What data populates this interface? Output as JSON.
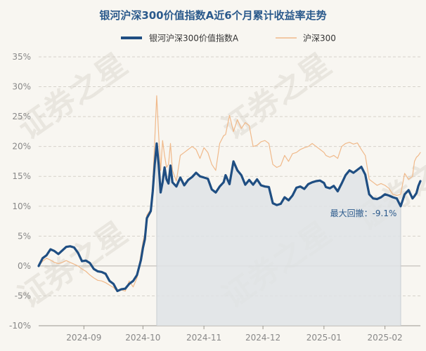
{
  "colors": {
    "fund": "#1f4e82",
    "index": "#f0b98a",
    "grid": "#d6d2ca",
    "drawdown_fill": "#dfe3e6",
    "drawdown_line": "#c9ced3",
    "text": "#2b5a8c"
  },
  "chart_data": {
    "type": "line",
    "title": "银河沪深300价值指数A近6个月累计收益率走势",
    "xlabel": "",
    "ylabel": "",
    "ylim": [
      -10,
      35
    ],
    "yticks": [
      -10,
      -5,
      0,
      5,
      10,
      15,
      20,
      25,
      30,
      35
    ],
    "ytick_labels": [
      "-10%",
      "-5%",
      "0%",
      "5%",
      "10%",
      "15%",
      "20%",
      "25%",
      "30%",
      "35%"
    ],
    "x_range": [
      "2024-08-09",
      "2025-02-19"
    ],
    "xticks": [
      "2024-09-01",
      "2024-10-01",
      "2024-11-01",
      "2024-12-01",
      "2025-01-01",
      "2025-02-01"
    ],
    "xtick_labels": [
      "2024-09",
      "2024-10",
      "2024-11",
      "2024-12",
      "2025-01",
      "2025-02"
    ],
    "legend_position": "top",
    "grid": "horizontal dashed",
    "series": [
      {
        "name": "银河沪深300价值指数A",
        "style": "thick",
        "points": [
          [
            "2024-08-09",
            0.0
          ],
          [
            "2024-08-11",
            1.3
          ],
          [
            "2024-08-13",
            1.8
          ],
          [
            "2024-08-15",
            2.8
          ],
          [
            "2024-08-17",
            2.5
          ],
          [
            "2024-08-19",
            2.0
          ],
          [
            "2024-08-21",
            2.6
          ],
          [
            "2024-08-23",
            3.2
          ],
          [
            "2024-08-25",
            3.3
          ],
          [
            "2024-08-27",
            3.1
          ],
          [
            "2024-08-29",
            2.2
          ],
          [
            "2024-08-31",
            0.8
          ],
          [
            "2024-09-02",
            0.9
          ],
          [
            "2024-09-04",
            0.5
          ],
          [
            "2024-09-06",
            -0.5
          ],
          [
            "2024-09-08",
            -0.9
          ],
          [
            "2024-09-10",
            -1.0
          ],
          [
            "2024-09-12",
            -1.3
          ],
          [
            "2024-09-14",
            -2.5
          ],
          [
            "2024-09-16",
            -3.0
          ],
          [
            "2024-09-18",
            -4.2
          ],
          [
            "2024-09-20",
            -3.9
          ],
          [
            "2024-09-22",
            -3.8
          ],
          [
            "2024-09-24",
            -3.0
          ],
          [
            "2024-09-26",
            -2.5
          ],
          [
            "2024-09-28",
            -1.5
          ],
          [
            "2024-09-30",
            1.0
          ],
          [
            "2024-10-01",
            3.0
          ],
          [
            "2024-10-02",
            4.5
          ],
          [
            "2024-10-03",
            8.0
          ],
          [
            "2024-10-05",
            9.2
          ],
          [
            "2024-10-06",
            12.5
          ],
          [
            "2024-10-07",
            17.0
          ],
          [
            "2024-10-08",
            20.5
          ],
          [
            "2024-10-09",
            17.0
          ],
          [
            "2024-10-10",
            12.3
          ],
          [
            "2024-10-11",
            14.0
          ],
          [
            "2024-10-12",
            16.5
          ],
          [
            "2024-10-13",
            14.5
          ],
          [
            "2024-10-14",
            13.8
          ],
          [
            "2024-10-15",
            16.8
          ],
          [
            "2024-10-16",
            14.0
          ],
          [
            "2024-10-18",
            13.3
          ],
          [
            "2024-10-20",
            14.8
          ],
          [
            "2024-10-22",
            13.5
          ],
          [
            "2024-10-24",
            14.4
          ],
          [
            "2024-10-26",
            14.9
          ],
          [
            "2024-10-28",
            15.6
          ],
          [
            "2024-10-30",
            15.0
          ],
          [
            "2024-11-01",
            14.8
          ],
          [
            "2024-11-03",
            14.6
          ],
          [
            "2024-11-05",
            12.8
          ],
          [
            "2024-11-07",
            12.3
          ],
          [
            "2024-11-09",
            13.3
          ],
          [
            "2024-11-11",
            14.0
          ],
          [
            "2024-11-12",
            15.2
          ],
          [
            "2024-11-14",
            13.7
          ],
          [
            "2024-11-16",
            17.5
          ],
          [
            "2024-11-18",
            16.0
          ],
          [
            "2024-11-20",
            15.2
          ],
          [
            "2024-11-22",
            13.6
          ],
          [
            "2024-11-24",
            14.4
          ],
          [
            "2024-11-26",
            13.6
          ],
          [
            "2024-11-28",
            14.5
          ],
          [
            "2024-11-30",
            13.5
          ],
          [
            "2024-12-02",
            13.3
          ],
          [
            "2024-12-04",
            13.2
          ],
          [
            "2024-12-06",
            10.5
          ],
          [
            "2024-12-08",
            10.2
          ],
          [
            "2024-12-10",
            10.4
          ],
          [
            "2024-12-12",
            11.5
          ],
          [
            "2024-12-14",
            11.0
          ],
          [
            "2024-12-16",
            11.8
          ],
          [
            "2024-12-18",
            13.1
          ],
          [
            "2024-12-20",
            13.3
          ],
          [
            "2024-12-22",
            12.9
          ],
          [
            "2024-12-24",
            13.7
          ],
          [
            "2024-12-26",
            14.0
          ],
          [
            "2024-12-28",
            14.2
          ],
          [
            "2024-12-30",
            14.3
          ],
          [
            "2025-01-01",
            13.9
          ],
          [
            "2025-01-02",
            13.2
          ],
          [
            "2025-01-04",
            13.0
          ],
          [
            "2025-01-06",
            13.4
          ],
          [
            "2025-01-08",
            12.5
          ],
          [
            "2025-01-10",
            13.8
          ],
          [
            "2025-01-12",
            15.2
          ],
          [
            "2025-01-14",
            16.0
          ],
          [
            "2025-01-16",
            15.6
          ],
          [
            "2025-01-18",
            16.1
          ],
          [
            "2025-01-20",
            16.6
          ],
          [
            "2025-01-22",
            15.3
          ],
          [
            "2025-01-24",
            12.0
          ],
          [
            "2025-01-26",
            11.3
          ],
          [
            "2025-01-28",
            11.2
          ],
          [
            "2025-01-30",
            11.5
          ],
          [
            "2025-02-01",
            12.0
          ],
          [
            "2025-02-03",
            11.8
          ],
          [
            "2025-02-05",
            11.5
          ],
          [
            "2025-02-07",
            11.3
          ],
          [
            "2025-02-09",
            10.0
          ],
          [
            "2025-02-11",
            12.0
          ],
          [
            "2025-02-13",
            12.7
          ],
          [
            "2025-02-15",
            11.3
          ],
          [
            "2025-02-16",
            11.7
          ],
          [
            "2025-02-17",
            12.2
          ],
          [
            "2025-02-18",
            13.4
          ],
          [
            "2025-02-19",
            14.2
          ]
        ]
      },
      {
        "name": "沪深300",
        "style": "thin",
        "points": [
          [
            "2024-08-09",
            0.0
          ],
          [
            "2024-08-11",
            0.8
          ],
          [
            "2024-08-13",
            1.3
          ],
          [
            "2024-08-15",
            1.0
          ],
          [
            "2024-08-17",
            0.6
          ],
          [
            "2024-08-19",
            0.4
          ],
          [
            "2024-08-21",
            0.6
          ],
          [
            "2024-08-23",
            0.9
          ],
          [
            "2024-08-25",
            0.6
          ],
          [
            "2024-08-27",
            0.3
          ],
          [
            "2024-08-29",
            0.0
          ],
          [
            "2024-08-31",
            -0.5
          ],
          [
            "2024-09-02",
            -0.9
          ],
          [
            "2024-09-04",
            -1.5
          ],
          [
            "2024-09-06",
            -2.0
          ],
          [
            "2024-09-08",
            -2.4
          ],
          [
            "2024-09-10",
            -2.5
          ],
          [
            "2024-09-12",
            -2.8
          ],
          [
            "2024-09-14",
            -3.2
          ],
          [
            "2024-09-16",
            -3.6
          ],
          [
            "2024-09-18",
            -4.3
          ],
          [
            "2024-09-20",
            -4.0
          ],
          [
            "2024-09-22",
            -4.2
          ],
          [
            "2024-09-24",
            -2.5
          ],
          [
            "2024-09-26",
            -3.5
          ],
          [
            "2024-09-28",
            -2.0
          ],
          [
            "2024-09-30",
            2.0
          ],
          [
            "2024-10-01",
            4.0
          ],
          [
            "2024-10-02",
            5.5
          ],
          [
            "2024-10-03",
            8.5
          ],
          [
            "2024-10-05",
            9.5
          ],
          [
            "2024-10-06",
            14.0
          ],
          [
            "2024-10-07",
            21.0
          ],
          [
            "2024-10-08",
            28.5
          ],
          [
            "2024-10-09",
            22.0
          ],
          [
            "2024-10-10",
            16.0
          ],
          [
            "2024-10-11",
            21.0
          ],
          [
            "2024-10-12",
            18.5
          ],
          [
            "2024-10-13",
            16.5
          ],
          [
            "2024-10-14",
            17.0
          ],
          [
            "2024-10-15",
            20.5
          ],
          [
            "2024-10-16",
            16.0
          ],
          [
            "2024-10-18",
            14.2
          ],
          [
            "2024-10-20",
            18.5
          ],
          [
            "2024-10-22",
            19.0
          ],
          [
            "2024-10-24",
            19.5
          ],
          [
            "2024-10-26",
            20.0
          ],
          [
            "2024-10-28",
            19.5
          ],
          [
            "2024-10-30",
            18.0
          ],
          [
            "2024-11-01",
            19.8
          ],
          [
            "2024-11-03",
            19.0
          ],
          [
            "2024-11-05",
            17.0
          ],
          [
            "2024-11-07",
            16.0
          ],
          [
            "2024-11-09",
            20.5
          ],
          [
            "2024-11-11",
            21.8
          ],
          [
            "2024-11-12",
            22.0
          ],
          [
            "2024-11-14",
            25.2
          ],
          [
            "2024-11-16",
            22.5
          ],
          [
            "2024-11-18",
            24.5
          ],
          [
            "2024-11-20",
            23.0
          ],
          [
            "2024-11-22",
            24.0
          ],
          [
            "2024-11-24",
            23.5
          ],
          [
            "2024-11-26",
            20.0
          ],
          [
            "2024-11-28",
            20.2
          ],
          [
            "2024-11-30",
            20.8
          ],
          [
            "2024-12-02",
            21.0
          ],
          [
            "2024-12-04",
            20.5
          ],
          [
            "2024-12-06",
            17.0
          ],
          [
            "2024-12-08",
            16.5
          ],
          [
            "2024-12-10",
            16.8
          ],
          [
            "2024-12-12",
            18.5
          ],
          [
            "2024-12-14",
            17.5
          ],
          [
            "2024-12-16",
            18.8
          ],
          [
            "2024-12-18",
            19.0
          ],
          [
            "2024-12-20",
            19.5
          ],
          [
            "2024-12-22",
            19.8
          ],
          [
            "2024-12-24",
            20.0
          ],
          [
            "2024-12-26",
            20.5
          ],
          [
            "2024-12-28",
            20.0
          ],
          [
            "2024-12-30",
            19.5
          ],
          [
            "2025-01-01",
            19.0
          ],
          [
            "2025-01-02",
            18.5
          ],
          [
            "2025-01-04",
            18.2
          ],
          [
            "2025-01-06",
            18.5
          ],
          [
            "2025-01-08",
            18.0
          ],
          [
            "2025-01-10",
            20.0
          ],
          [
            "2025-01-12",
            20.5
          ],
          [
            "2025-01-14",
            20.7
          ],
          [
            "2025-01-16",
            20.4
          ],
          [
            "2025-01-18",
            20.6
          ],
          [
            "2025-01-20",
            19.5
          ],
          [
            "2025-01-22",
            18.5
          ],
          [
            "2025-01-24",
            14.5
          ],
          [
            "2025-01-26",
            14.0
          ],
          [
            "2025-01-28",
            13.5
          ],
          [
            "2025-01-30",
            13.8
          ],
          [
            "2025-02-01",
            13.5
          ],
          [
            "2025-02-03",
            13.0
          ],
          [
            "2025-02-05",
            12.0
          ],
          [
            "2025-02-07",
            11.8
          ],
          [
            "2025-02-09",
            12.0
          ],
          [
            "2025-02-11",
            15.5
          ],
          [
            "2025-02-13",
            14.5
          ],
          [
            "2025-02-15",
            15.0
          ],
          [
            "2025-02-16",
            17.5
          ],
          [
            "2025-02-17",
            18.2
          ],
          [
            "2025-02-18",
            18.5
          ],
          [
            "2025-02-19",
            19.0
          ]
        ]
      }
    ],
    "max_drawdown": {
      "label": "最大回撤：-9.1%",
      "start": "2024-10-08",
      "end": "2025-02-09"
    }
  },
  "watermark": "证券之星"
}
